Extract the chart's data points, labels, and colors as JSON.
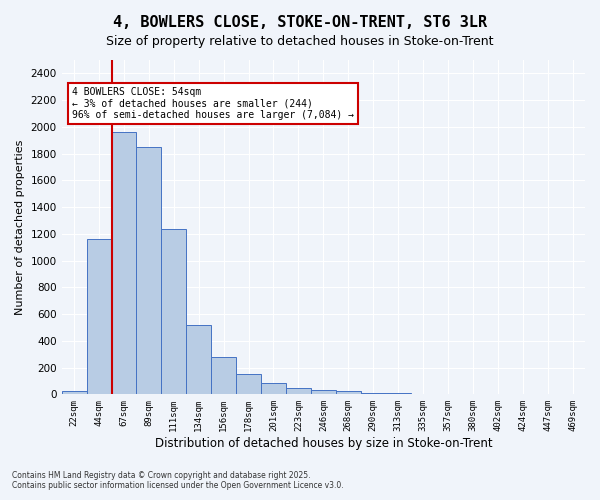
{
  "title": "4, BOWLERS CLOSE, STOKE-ON-TRENT, ST6 3LR",
  "subtitle": "Size of property relative to detached houses in Stoke-on-Trent",
  "xlabel": "Distribution of detached houses by size in Stoke-on-Trent",
  "ylabel": "Number of detached properties",
  "categories": [
    "22sqm",
    "44sqm",
    "67sqm",
    "89sqm",
    "111sqm",
    "134sqm",
    "156sqm",
    "178sqm",
    "201sqm",
    "223sqm",
    "246sqm",
    "268sqm",
    "290sqm",
    "313sqm",
    "335sqm",
    "357sqm",
    "380sqm",
    "402sqm",
    "424sqm",
    "447sqm",
    "469sqm"
  ],
  "values": [
    25,
    1165,
    1960,
    1850,
    1235,
    520,
    280,
    155,
    88,
    48,
    30,
    28,
    10,
    8,
    5,
    3,
    2,
    2,
    1,
    1,
    1
  ],
  "bar_color": "#b8cce4",
  "bar_edge_color": "#4472c4",
  "property_line_x": 1,
  "property_line_color": "#cc0000",
  "annotation_title": "4 BOWLERS CLOSE: 54sqm",
  "annotation_line1": "← 3% of detached houses are smaller (244)",
  "annotation_line2": "96% of semi-detached houses are larger (7,084) →",
  "ylim": [
    0,
    2500
  ],
  "yticks": [
    0,
    200,
    400,
    600,
    800,
    1000,
    1200,
    1400,
    1600,
    1800,
    2000,
    2200,
    2400
  ],
  "annotation_box_color": "#ffffff",
  "annotation_box_edge": "#cc0000",
  "background_color": "#f0f4fa",
  "footer_line1": "Contains HM Land Registry data © Crown copyright and database right 2025.",
  "footer_line2": "Contains public sector information licensed under the Open Government Licence v3.0.",
  "grid_color": "#ffffff",
  "title_fontsize": 11,
  "subtitle_fontsize": 9,
  "axis_fontsize": 8,
  "tick_fontsize": 7
}
